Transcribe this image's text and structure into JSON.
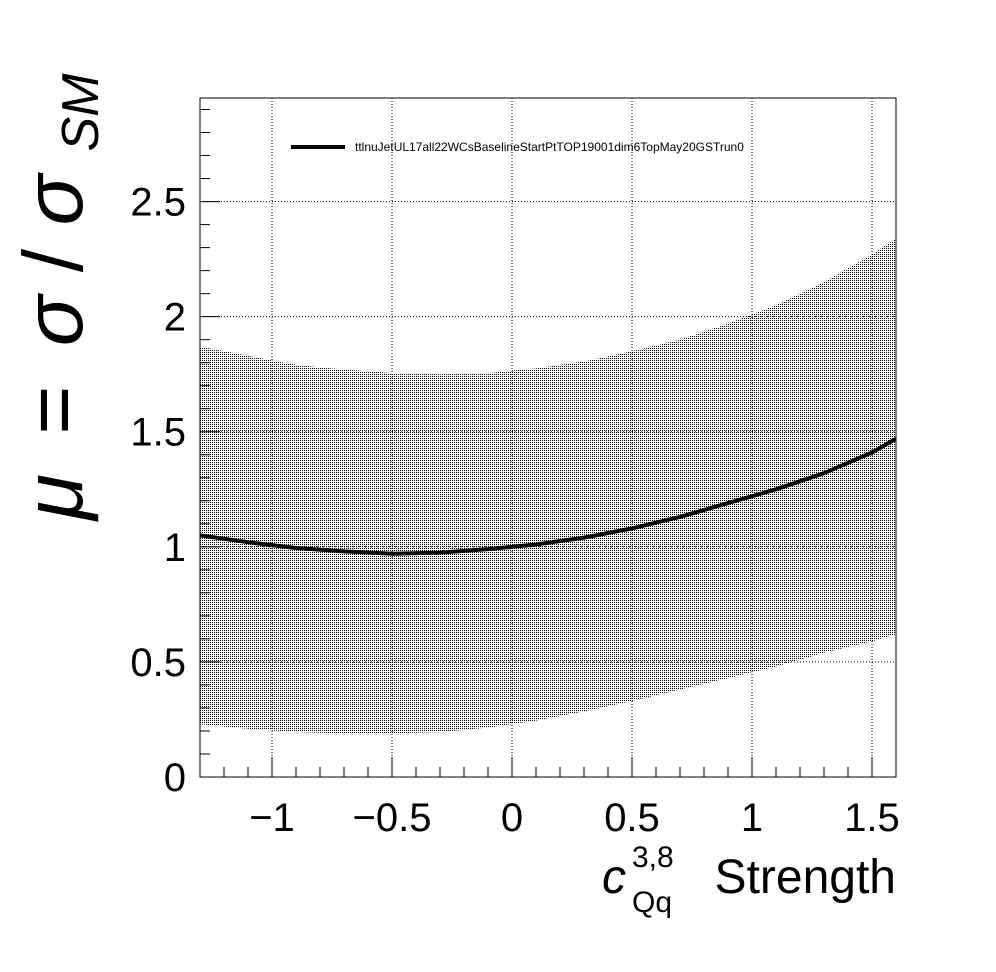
{
  "chart_data": {
    "type": "line",
    "title": "",
    "xlabel": {
      "symbol": "c",
      "superscript": "3,8",
      "subscript": "Qq",
      "text": "Strength"
    },
    "ylabel": {
      "mu": "μ",
      "equals": "=",
      "sigma": "σ",
      "slash": "/",
      "subscript": "SM"
    },
    "xlim": [
      -1.3,
      1.6
    ],
    "ylim": [
      0,
      2.95
    ],
    "x_ticks": [
      -1,
      -0.5,
      0,
      0.5,
      1,
      1.5
    ],
    "x_tick_labels": [
      "−1",
      "−0.5",
      "0",
      "0.5",
      "1",
      "1.5"
    ],
    "y_ticks": [
      0,
      0.5,
      1,
      1.5,
      2,
      2.5
    ],
    "y_tick_labels": [
      "0",
      "0.5",
      "1",
      "1.5",
      "2",
      "2.5"
    ],
    "grid": true,
    "legend_position": "top-left",
    "series": [
      {
        "name": "ttlnuJetUL17all22WCsBaselineStartPtTOP19001dim6TopMay20GSTrun0",
        "color": "#000000",
        "x": [
          -1.3,
          -1.1,
          -0.9,
          -0.7,
          -0.5,
          -0.3,
          -0.1,
          0.0,
          0.1,
          0.3,
          0.5,
          0.7,
          0.9,
          1.1,
          1.3,
          1.5,
          1.6
        ],
        "y": [
          1.05,
          1.02,
          0.995,
          0.98,
          0.97,
          0.975,
          0.99,
          1.0,
          1.01,
          1.04,
          1.08,
          1.13,
          1.19,
          1.25,
          1.32,
          1.41,
          1.47
        ],
        "band_upper": [
          1.87,
          1.83,
          1.79,
          1.77,
          1.755,
          1.75,
          1.755,
          1.765,
          1.775,
          1.805,
          1.85,
          1.9,
          1.97,
          2.05,
          2.15,
          2.27,
          2.34
        ],
        "band_lower": [
          0.23,
          0.21,
          0.195,
          0.19,
          0.19,
          0.195,
          0.215,
          0.23,
          0.245,
          0.285,
          0.33,
          0.38,
          0.43,
          0.48,
          0.54,
          0.59,
          0.62
        ]
      }
    ]
  }
}
